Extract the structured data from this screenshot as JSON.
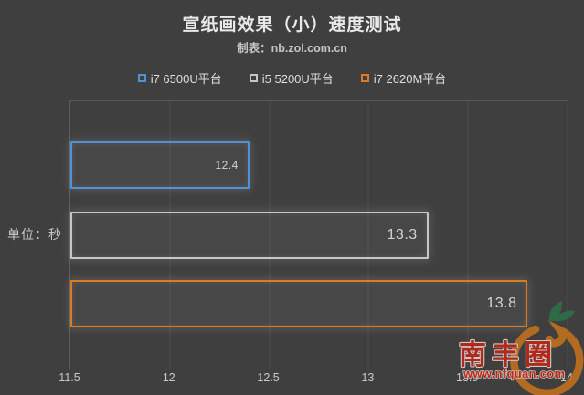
{
  "title": "宣纸画效果（小）速度测试",
  "subtitle": "制表：nb.zol.com.cn",
  "y_axis_label": "单位：秒",
  "legend": [
    {
      "label": "i7 6500U平台",
      "color": "#4f93d2"
    },
    {
      "label": "i5 5200U平台",
      "color": "#c6c6c6"
    },
    {
      "label": "i7 2620M平台",
      "color": "#e07b1d"
    }
  ],
  "chart_data": {
    "type": "bar",
    "orientation": "horizontal",
    "title": "宣纸画效果（小）速度测试",
    "subtitle": "制表：nb.zol.com.cn",
    "unit_label": "单位：秒",
    "categories": [
      "i7 6500U平台",
      "i5 5200U平台",
      "i7 2620M平台"
    ],
    "values": [
      12.4,
      13.3,
      13.8
    ],
    "value_labels": [
      "12.4",
      "13.3",
      "13.8"
    ],
    "colors": [
      "#4f93d2",
      "#c6c6c6",
      "#e07b1d"
    ],
    "xlim": [
      11.5,
      14
    ],
    "x_ticks": [
      11.5,
      12,
      12.5,
      13,
      13.5,
      14
    ],
    "x_tick_labels": [
      "11.5",
      "12",
      "12.5",
      "13",
      "13.5",
      "14"
    ],
    "grid": true,
    "legend_position": "top",
    "lower_is_better": true
  },
  "watermark": {
    "name": "南丰圈",
    "url": "www.nfquan.com",
    "text_color": "#b2281a",
    "url_color": "#c1250f",
    "outline_color": "#c9c9c9",
    "circle_color": "#bd6e1e",
    "leaf_color": "#2d6e45"
  },
  "colors": {
    "background": "#3f3f3f",
    "grid": "#4d4d4d",
    "axis": "#5d5d5d",
    "text": "#d6d6d6"
  }
}
